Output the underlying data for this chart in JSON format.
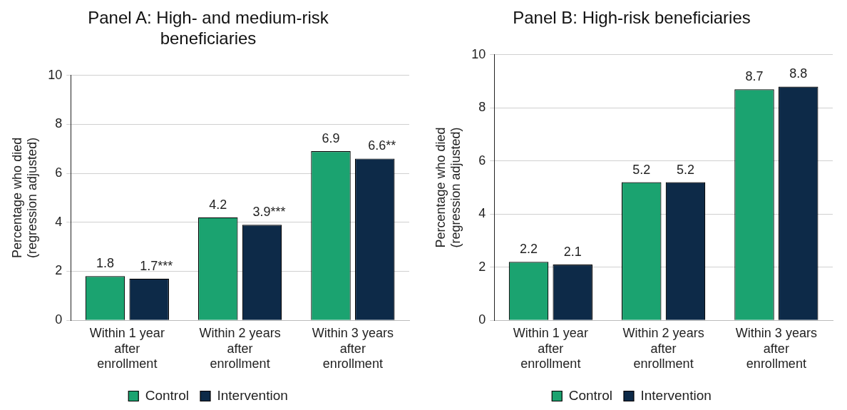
{
  "chart_data": [
    {
      "type": "bar",
      "title": "Panel A: High- and medium-risk beneficiaries",
      "ylabel": "Percentage who died (regression adjusted)",
      "categories": [
        "Within 1 year after enrollment",
        "Within 2 years after enrollment",
        "Within 3 years after enrollment"
      ],
      "series": [
        {
          "name": "Control",
          "color": "#1ba370",
          "values": [
            1.8,
            4.2,
            6.9
          ],
          "value_labels": [
            "1.8",
            "4.2",
            "6.9"
          ]
        },
        {
          "name": "Intervention",
          "color": "#0d2a48",
          "values": [
            1.7,
            3.9,
            6.6
          ],
          "value_labels": [
            "1.7***",
            "3.9***",
            "6.6**"
          ]
        }
      ],
      "ylim": [
        0,
        10
      ],
      "yticks": [
        0,
        2,
        4,
        6,
        8,
        10
      ],
      "grid": "y",
      "legend": "bottom"
    },
    {
      "type": "bar",
      "title": "Panel B: High-risk beneficiaries",
      "ylabel": "Percentage who died (regression adjusted)",
      "categories": [
        "Within 1 year after enrollment",
        "Within 2 years after enrollment",
        "Within 3 years after enrollment"
      ],
      "series": [
        {
          "name": "Control",
          "color": "#1ba370",
          "values": [
            2.2,
            5.2,
            8.7
          ],
          "value_labels": [
            "2.2",
            "5.2",
            "8.7"
          ]
        },
        {
          "name": "Intervention",
          "color": "#0d2a48",
          "values": [
            2.1,
            5.2,
            8.8
          ],
          "value_labels": [
            "2.1",
            "5.2",
            "8.8"
          ]
        }
      ],
      "ylim": [
        0,
        10
      ],
      "yticks": [
        0,
        2,
        4,
        6,
        8,
        10
      ],
      "grid": "y",
      "legend": "bottom"
    }
  ]
}
